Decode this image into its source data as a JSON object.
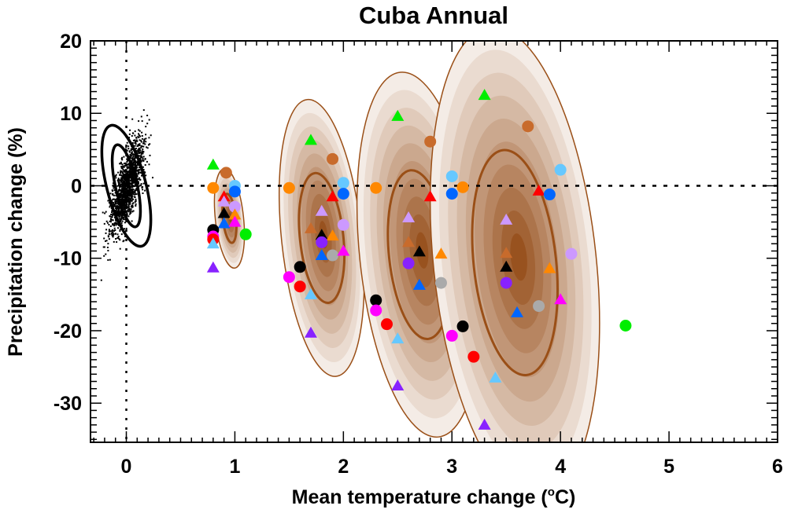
{
  "chart_data": {
    "type": "scatter",
    "title": "Cuba Annual",
    "xlabel": "Mean temperature change (°C)",
    "xlabel_parts": {
      "prefix": "Mean temperature change (",
      "sup": "o",
      "suffix": "C)"
    },
    "ylabel": "Precipitation change (%)",
    "xlim": [
      -0.33,
      6
    ],
    "ylim": [
      -35.4,
      20
    ],
    "xticks": [
      0,
      1,
      2,
      3,
      4,
      5,
      6
    ],
    "xtick_labels": [
      "0",
      "1",
      "2",
      "3",
      "4",
      "5",
      "6"
    ],
    "yticks": [
      20,
      10,
      0,
      -10,
      -20,
      -30
    ],
    "ytick_labels": [
      "20",
      "10",
      "0",
      "-10",
      "-20",
      "-30"
    ],
    "reference_lines": {
      "x": 0,
      "y": 0
    },
    "natural_variability": {
      "center": [
        0,
        0
      ],
      "inner_ellipse": {
        "x_halfwidth": 0.1,
        "y_halfwidth": 5.8,
        "tilt_deg": -8
      },
      "outer_ellipse": {
        "x_halfwidth": 0.18,
        "y_halfwidth": 8.6,
        "tilt_deg": -9
      },
      "point_count": 1500
    },
    "colors": {
      "contour_line": "#9a4f17",
      "fill_light": "#f4ece6",
      "fill_dark": "#98521f"
    },
    "clusters": [
      {
        "center": [
          0.95,
          -4.5
        ],
        "outer_halfwidth": [
          0.13,
          6.9
        ],
        "inner_halfwidth": [
          0.06,
          3.4
        ],
        "points": [
          {
            "x": 0.8,
            "y": 2.9,
            "shape": "triangle",
            "color": "#00ee00"
          },
          {
            "x": 0.92,
            "y": 1.8,
            "shape": "circle",
            "color": "#c86b2c"
          },
          {
            "x": 0.8,
            "y": -0.3,
            "shape": "circle",
            "color": "#ff8800"
          },
          {
            "x": 1.0,
            "y": 0.0,
            "shape": "circle",
            "color": "#66c8ff"
          },
          {
            "x": 1.0,
            "y": -0.8,
            "shape": "circle",
            "color": "#0066ff"
          },
          {
            "x": 0.9,
            "y": -1.5,
            "shape": "triangle",
            "color": "#ff0000"
          },
          {
            "x": 0.9,
            "y": -2.2,
            "shape": "triangle",
            "color": "#cc99ff"
          },
          {
            "x": 1.0,
            "y": -2.9,
            "shape": "circle",
            "color": "#cc99ff"
          },
          {
            "x": 0.9,
            "y": -3.8,
            "shape": "triangle",
            "color": "#000000"
          },
          {
            "x": 1.0,
            "y": -4.0,
            "shape": "triangle",
            "color": "#ff8800"
          },
          {
            "x": 0.9,
            "y": -5.2,
            "shape": "triangle",
            "color": "#0066ff"
          },
          {
            "x": 1.0,
            "y": -5.0,
            "shape": "triangle",
            "color": "#ff00ff"
          },
          {
            "x": 0.8,
            "y": -6.1,
            "shape": "circle",
            "color": "#000000"
          },
          {
            "x": 0.8,
            "y": -7.0,
            "shape": "circle",
            "color": "#ff00ff"
          },
          {
            "x": 0.8,
            "y": -7.4,
            "shape": "circle",
            "color": "#ff0000"
          },
          {
            "x": 0.8,
            "y": -8.0,
            "shape": "triangle",
            "color": "#66c8ff"
          },
          {
            "x": 1.1,
            "y": -6.7,
            "shape": "circle",
            "color": "#00ee00"
          },
          {
            "x": 0.8,
            "y": -11.3,
            "shape": "triangle",
            "color": "#8822ff"
          }
        ]
      },
      {
        "center": [
          1.8,
          -7.2
        ],
        "outer_halfwidth": [
          0.37,
          19.2
        ],
        "inner_halfwidth": [
          0.2,
          9.0
        ],
        "points": [
          {
            "x": 1.7,
            "y": 6.3,
            "shape": "triangle",
            "color": "#00ee00"
          },
          {
            "x": 1.9,
            "y": 3.7,
            "shape": "circle",
            "color": "#c86b2c"
          },
          {
            "x": 1.5,
            "y": -0.3,
            "shape": "circle",
            "color": "#ff8800"
          },
          {
            "x": 2.0,
            "y": 0.4,
            "shape": "circle",
            "color": "#66c8ff"
          },
          {
            "x": 2.0,
            "y": -1.1,
            "shape": "circle",
            "color": "#0066ff"
          },
          {
            "x": 1.9,
            "y": -1.5,
            "shape": "triangle",
            "color": "#ff0000"
          },
          {
            "x": 1.8,
            "y": -3.5,
            "shape": "triangle",
            "color": "#cc99ff"
          },
          {
            "x": 2.0,
            "y": -5.4,
            "shape": "circle",
            "color": "#cc99ff"
          },
          {
            "x": 1.7,
            "y": -5.9,
            "shape": "triangle",
            "color": "#c86b2c"
          },
          {
            "x": 1.8,
            "y": -6.8,
            "shape": "triangle",
            "color": "#000000"
          },
          {
            "x": 1.9,
            "y": -6.9,
            "shape": "triangle",
            "color": "#ff8800"
          },
          {
            "x": 1.8,
            "y": -7.8,
            "shape": "circle",
            "color": "#8822ff"
          },
          {
            "x": 1.8,
            "y": -9.6,
            "shape": "triangle",
            "color": "#0066ff"
          },
          {
            "x": 1.9,
            "y": -9.6,
            "shape": "circle",
            "color": "#aaaaaa"
          },
          {
            "x": 2.0,
            "y": -9.0,
            "shape": "triangle",
            "color": "#ff00ff"
          },
          {
            "x": 1.6,
            "y": -11.2,
            "shape": "circle",
            "color": "#000000"
          },
          {
            "x": 1.5,
            "y": -12.6,
            "shape": "circle",
            "color": "#ff00ff"
          },
          {
            "x": 1.6,
            "y": -13.9,
            "shape": "circle",
            "color": "#ff0000"
          },
          {
            "x": 1.7,
            "y": -15.0,
            "shape": "triangle",
            "color": "#66c8ff"
          },
          {
            "x": 1.7,
            "y": -20.3,
            "shape": "triangle",
            "color": "#8822ff"
          }
        ]
      },
      {
        "center": [
          2.7,
          -9.5
        ],
        "outer_halfwidth": [
          0.55,
          25.3
        ],
        "inner_halfwidth": [
          0.28,
          11.7
        ],
        "points": [
          {
            "x": 2.5,
            "y": 9.6,
            "shape": "triangle",
            "color": "#00ee00"
          },
          {
            "x": 2.8,
            "y": 6.1,
            "shape": "circle",
            "color": "#c86b2c"
          },
          {
            "x": 2.3,
            "y": -0.3,
            "shape": "circle",
            "color": "#ff8800"
          },
          {
            "x": 3.0,
            "y": 1.3,
            "shape": "circle",
            "color": "#66c8ff"
          },
          {
            "x": 3.0,
            "y": -1.1,
            "shape": "circle",
            "color": "#0066ff"
          },
          {
            "x": 3.1,
            "y": -0.2,
            "shape": "circle",
            "color": "#ff8800"
          },
          {
            "x": 2.8,
            "y": -1.5,
            "shape": "triangle",
            "color": "#ff0000"
          },
          {
            "x": 2.6,
            "y": -4.4,
            "shape": "triangle",
            "color": "#cc99ff"
          },
          {
            "x": 2.6,
            "y": -7.8,
            "shape": "triangle",
            "color": "#c86b2c"
          },
          {
            "x": 2.7,
            "y": -9.1,
            "shape": "triangle",
            "color": "#000000"
          },
          {
            "x": 2.9,
            "y": -9.4,
            "shape": "triangle",
            "color": "#ff8800"
          },
          {
            "x": 2.6,
            "y": -10.7,
            "shape": "circle",
            "color": "#8822ff"
          },
          {
            "x": 2.7,
            "y": -13.7,
            "shape": "triangle",
            "color": "#0066ff"
          },
          {
            "x": 2.9,
            "y": -13.4,
            "shape": "circle",
            "color": "#aaaaaa"
          },
          {
            "x": 2.3,
            "y": -15.8,
            "shape": "circle",
            "color": "#000000"
          },
          {
            "x": 2.3,
            "y": -17.2,
            "shape": "circle",
            "color": "#ff00ff"
          },
          {
            "x": 2.4,
            "y": -19.1,
            "shape": "circle",
            "color": "#ff0000"
          },
          {
            "x": 2.5,
            "y": -21.1,
            "shape": "triangle",
            "color": "#66c8ff"
          },
          {
            "x": 2.5,
            "y": -27.6,
            "shape": "triangle",
            "color": "#8822ff"
          }
        ]
      },
      {
        "center": [
          3.58,
          -10.6
        ],
        "outer_halfwidth": [
          0.75,
          32.7
        ],
        "inner_halfwidth": [
          0.38,
          15.6
        ],
        "points": [
          {
            "x": 3.3,
            "y": 12.5,
            "shape": "triangle",
            "color": "#00ee00"
          },
          {
            "x": 3.7,
            "y": 8.2,
            "shape": "circle",
            "color": "#c86b2c"
          },
          {
            "x": 4.0,
            "y": 2.2,
            "shape": "circle",
            "color": "#66c8ff"
          },
          {
            "x": 3.8,
            "y": -0.7,
            "shape": "triangle",
            "color": "#ff0000"
          },
          {
            "x": 3.9,
            "y": -1.2,
            "shape": "circle",
            "color": "#0066ff"
          },
          {
            "x": 3.5,
            "y": -4.7,
            "shape": "triangle",
            "color": "#cc99ff"
          },
          {
            "x": 4.1,
            "y": -9.4,
            "shape": "circle",
            "color": "#cc99ff"
          },
          {
            "x": 3.5,
            "y": -9.3,
            "shape": "triangle",
            "color": "#c86b2c"
          },
          {
            "x": 3.5,
            "y": -11.2,
            "shape": "triangle",
            "color": "#000000"
          },
          {
            "x": 3.9,
            "y": -11.4,
            "shape": "triangle",
            "color": "#ff8800"
          },
          {
            "x": 3.5,
            "y": -13.4,
            "shape": "circle",
            "color": "#8822ff"
          },
          {
            "x": 4.0,
            "y": -15.7,
            "shape": "triangle",
            "color": "#ff00ff"
          },
          {
            "x": 3.8,
            "y": -16.6,
            "shape": "circle",
            "color": "#aaaaaa"
          },
          {
            "x": 3.6,
            "y": -17.5,
            "shape": "triangle",
            "color": "#0066ff"
          },
          {
            "x": 3.1,
            "y": -19.4,
            "shape": "circle",
            "color": "#000000"
          },
          {
            "x": 3.0,
            "y": -20.7,
            "shape": "circle",
            "color": "#ff00ff"
          },
          {
            "x": 3.2,
            "y": -23.6,
            "shape": "circle",
            "color": "#ff0000"
          },
          {
            "x": 3.4,
            "y": -26.5,
            "shape": "triangle",
            "color": "#66c8ff"
          },
          {
            "x": 3.3,
            "y": -33.0,
            "shape": "triangle",
            "color": "#8822ff"
          },
          {
            "x": 4.6,
            "y": -19.3,
            "shape": "circle",
            "color": "#00ee00"
          }
        ]
      }
    ]
  }
}
